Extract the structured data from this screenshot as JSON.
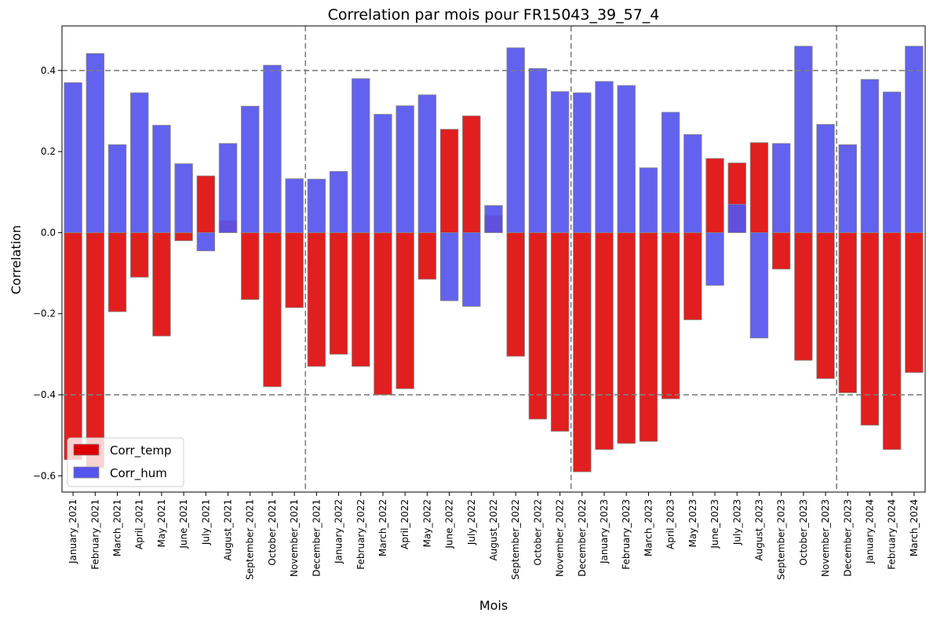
{
  "chart_data": {
    "type": "bar",
    "title": "Correlation par mois pour FR15043_39_57_4",
    "xlabel": "Mois",
    "ylabel": "Correlation",
    "ylim": [
      -0.64,
      0.51
    ],
    "yticks": [
      "−0.6",
      "−0.4",
      "−0.2",
      "0.0",
      "0.2",
      "0.4"
    ],
    "ytick_values": [
      -0.6,
      -0.4,
      -0.2,
      0.0,
      0.2,
      0.4
    ],
    "reference_lines": [
      0.4,
      -0.4
    ],
    "year_separators_after": [
      "November_2021",
      "November_2022",
      "November_2023"
    ],
    "grid": false,
    "legend_position": "lower-left",
    "categories": [
      "January_2021",
      "February_2021",
      "March_2021",
      "April_2021",
      "May_2021",
      "June_2021",
      "July_2021",
      "August_2021",
      "September_2021",
      "October_2021",
      "November_2021",
      "December_2021",
      "January_2022",
      "February_2022",
      "March_2022",
      "April_2022",
      "May_2022",
      "June_2022",
      "July_2022",
      "August_2022",
      "September_2022",
      "October_2022",
      "November_2022",
      "December_2022",
      "January_2023",
      "February_2023",
      "March_2023",
      "April_2023",
      "May_2023",
      "June_2023",
      "July_2023",
      "August_2023",
      "September_2023",
      "October_2023",
      "November_2023",
      "December_2023",
      "January_2024",
      "February_2024",
      "March_2024"
    ],
    "series": [
      {
        "name": "Corr_temp",
        "color": "#dd0000",
        "values": [
          -0.56,
          -0.58,
          -0.195,
          -0.11,
          -0.255,
          -0.02,
          0.14,
          0.03,
          -0.165,
          -0.38,
          -0.185,
          -0.33,
          -0.3,
          -0.33,
          -0.4,
          -0.385,
          -0.115,
          0.255,
          0.288,
          0.042,
          -0.305,
          -0.46,
          -0.49,
          -0.59,
          -0.535,
          -0.52,
          -0.515,
          -0.41,
          -0.215,
          0.183,
          0.172,
          0.222,
          -0.09,
          -0.315,
          -0.36,
          -0.395,
          -0.475,
          -0.535,
          -0.345
        ]
      },
      {
        "name": "Corr_hum",
        "color": "#5555ee",
        "values": [
          0.37,
          0.442,
          0.217,
          0.345,
          0.265,
          0.17,
          -0.045,
          0.22,
          0.312,
          0.413,
          0.133,
          0.132,
          0.151,
          0.38,
          0.292,
          0.313,
          0.34,
          -0.168,
          -0.182,
          0.067,
          0.456,
          0.405,
          0.348,
          0.345,
          0.373,
          0.363,
          0.16,
          0.297,
          0.242,
          -0.13,
          0.07,
          -0.26,
          0.22,
          0.46,
          0.267,
          0.217,
          0.378,
          0.347,
          0.46
        ]
      }
    ]
  }
}
